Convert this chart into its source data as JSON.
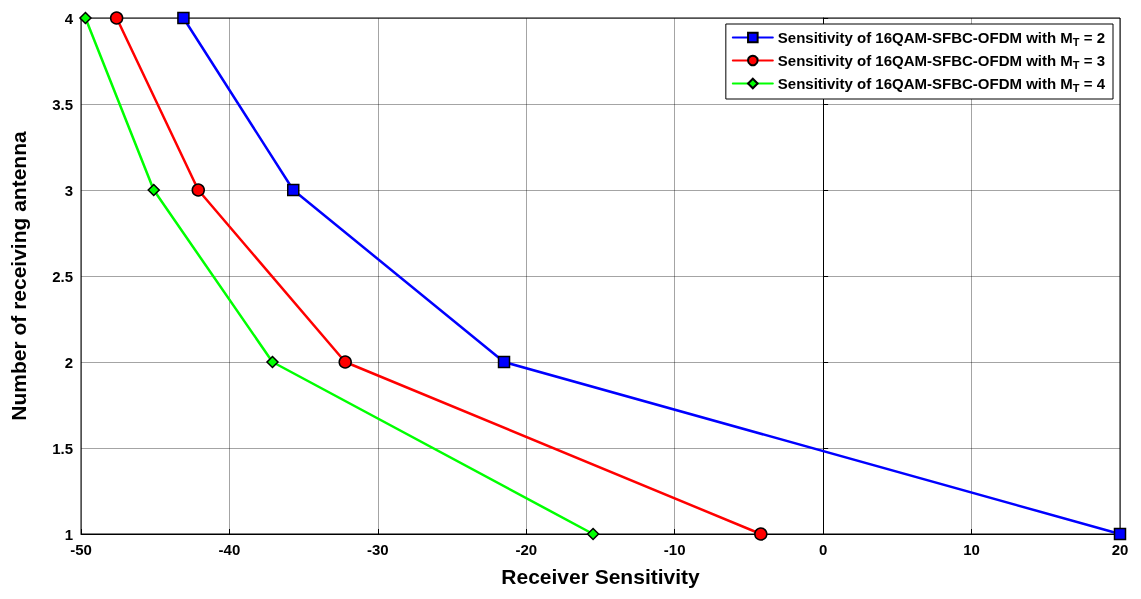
{
  "chart_data": {
    "type": "line",
    "xlabel": "Receiver Sensitivity",
    "ylabel": "Number of receiving antenna",
    "xlim": [
      -50,
      20
    ],
    "xticks": [
      -50,
      -40,
      -30,
      -20,
      -10,
      0,
      10,
      20
    ],
    "ylim": [
      1,
      4
    ],
    "yticks": [
      1,
      1.5,
      2,
      2.5,
      3,
      3.5,
      4
    ],
    "grid": true,
    "legend": "top right",
    "line_style": "solid",
    "series": [
      {
        "name": "Sensitivity of 16QAM-SFBC-OFDM with M$_{T}$ = 2",
        "color": "#0000ff",
        "marker": "square",
        "x": [
          -43.1,
          -35.7,
          -21.5,
          20
        ],
        "values": [
          4,
          3,
          2,
          1
        ]
      },
      {
        "name": "Sensitivity of 16QAM-SFBC-OFDM with M$_{T}$ = 3",
        "color": "#ff0000",
        "marker": "circle",
        "x": [
          -47.6,
          -42.1,
          -32.2,
          -4.2
        ],
        "values": [
          4,
          3,
          2,
          1
        ]
      },
      {
        "name": "Sensitivity of 16QAM-SFBC-OFDM with M$_{T}$ = 4",
        "color": "#00ff00",
        "marker": "diamond",
        "x": [
          -49.7,
          -45.1,
          -37.1,
          -15.5
        ],
        "values": [
          4,
          3,
          2,
          1
        ]
      }
    ]
  }
}
